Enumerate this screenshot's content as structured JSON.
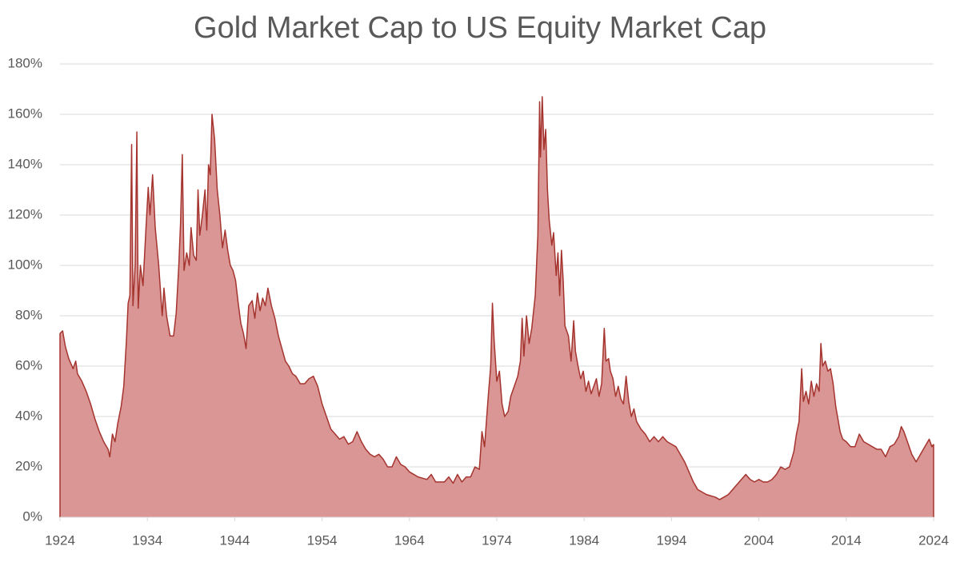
{
  "chart_data": {
    "type": "area",
    "title": "Gold Market Cap to US Equity Market Cap",
    "x": [
      1924.0,
      1924.3,
      1924.6,
      1925,
      1925.5,
      1925.8,
      1926,
      1926.5,
      1927,
      1927.5,
      1928,
      1928.5,
      1929,
      1929.5,
      1929.7,
      1930,
      1930.3,
      1930.6,
      1931,
      1931.3,
      1931.6,
      1931.8,
      1932.0,
      1932.2,
      1932.35,
      1932.6,
      1932.8,
      1932.95,
      1933.2,
      1933.5,
      1933.8,
      1934.1,
      1934.3,
      1934.6,
      1934.9,
      1935.3,
      1935.7,
      1935.9,
      1936.2,
      1936.6,
      1937,
      1937.3,
      1937.6,
      1937.8,
      1938.0,
      1938.2,
      1938.5,
      1938.8,
      1939.0,
      1939.3,
      1939.6,
      1939.8,
      1940.0,
      1940.3,
      1940.6,
      1940.8,
      1941.0,
      1941.2,
      1941.4,
      1941.7,
      1942,
      1942.3,
      1942.6,
      1942.9,
      1943.2,
      1943.5,
      1943.8,
      1944.1,
      1944.4,
      1944.7,
      1945,
      1945.3,
      1945.6,
      1946,
      1946.3,
      1946.6,
      1946.9,
      1947.2,
      1947.5,
      1947.8,
      1948.2,
      1948.6,
      1949,
      1949.4,
      1949.8,
      1950.2,
      1950.6,
      1951,
      1951.5,
      1952,
      1952.5,
      1953,
      1953.5,
      1954,
      1954.5,
      1955,
      1955.5,
      1956,
      1956.5,
      1957,
      1957.5,
      1958,
      1958.5,
      1959,
      1959.5,
      1960,
      1960.5,
      1961,
      1961.5,
      1962,
      1962.5,
      1963,
      1963.5,
      1964,
      1964.5,
      1965,
      1965.5,
      1966,
      1966.5,
      1967,
      1968,
      1968.5,
      1969,
      1969.5,
      1970,
      1970.5,
      1971,
      1971.5,
      1972,
      1972.3,
      1972.6,
      1973,
      1973.3,
      1973.5,
      1973.7,
      1974,
      1974.3,
      1974.6,
      1974.9,
      1975.3,
      1975.6,
      1976,
      1976.4,
      1976.7,
      1976.9,
      1977.1,
      1977.4,
      1977.7,
      1978,
      1978.4,
      1978.7,
      1978.9,
      1979.0,
      1979.2,
      1979.4,
      1979.6,
      1979.8,
      1980,
      1980.3,
      1980.5,
      1980.8,
      1981,
      1981.2,
      1981.4,
      1981.6,
      1981.8,
      1982.2,
      1982.5,
      1982.8,
      1983,
      1983.3,
      1983.6,
      1983.9,
      1984.2,
      1984.5,
      1984.8,
      1985.1,
      1985.4,
      1985.7,
      1986,
      1986.3,
      1986.5,
      1986.8,
      1987,
      1987.3,
      1987.6,
      1987.9,
      1988.2,
      1988.5,
      1988.8,
      1989.1,
      1989.4,
      1989.7,
      1990,
      1990.5,
      1991,
      1991.5,
      1992,
      1992.5,
      1993,
      1993.5,
      1994,
      1994.5,
      1995,
      1995.5,
      1996,
      1996.5,
      1997,
      1997.5,
      1998,
      1998.5,
      1999,
      1999.5,
      2000,
      2000.5,
      2001,
      2001.5,
      2002,
      2002.5,
      2003,
      2003.5,
      2004,
      2004.5,
      2005,
      2005.5,
      2006,
      2006.5,
      2007,
      2007.5,
      2008,
      2008.3,
      2008.6,
      2008.9,
      2009.1,
      2009.4,
      2009.7,
      2010,
      2010.3,
      2010.6,
      2010.9,
      2011.1,
      2011.3,
      2011.6,
      2011.9,
      2012.2,
      2012.5,
      2012.8,
      2013,
      2013.3,
      2013.6,
      2014,
      2014.5,
      2015,
      2015.5,
      2016,
      2016.5,
      2017,
      2017.5,
      2018,
      2018.5,
      2019,
      2019.5,
      2020,
      2020.3,
      2020.6,
      2021,
      2021.5,
      2022,
      2022.5,
      2023,
      2023.5,
      2023.8,
      2024.0
    ],
    "values": [
      73,
      74,
      68,
      63,
      59,
      62,
      57,
      54,
      50,
      45,
      39,
      34,
      30,
      27,
      24,
      33,
      30,
      37,
      44,
      52,
      70,
      85,
      88,
      148,
      84,
      100,
      153,
      83,
      100,
      92,
      112,
      131,
      120,
      136,
      115,
      100,
      80,
      91,
      80,
      72,
      72,
      81,
      100,
      117,
      144,
      98,
      105,
      100,
      115,
      104,
      102,
      130,
      112,
      120,
      130,
      114,
      140,
      136,
      160,
      150,
      130,
      120,
      107,
      114,
      106,
      100,
      98,
      94,
      85,
      77,
      73,
      67,
      84,
      86,
      79,
      89,
      82,
      87,
      84,
      91,
      84,
      79,
      72,
      67,
      62,
      60,
      57,
      56,
      53,
      53,
      55,
      56,
      52,
      45,
      40,
      35,
      33,
      31,
      32,
      29,
      30,
      34,
      30,
      27,
      25,
      24,
      25,
      23,
      20,
      20,
      24,
      21,
      20,
      18,
      17,
      16,
      15.5,
      15,
      17,
      14,
      14,
      16,
      13.5,
      17,
      14,
      16,
      16,
      20,
      19,
      34,
      28,
      47,
      60,
      85,
      70,
      54,
      58,
      45,
      40,
      42,
      48,
      52,
      56,
      62,
      79,
      64,
      80,
      69,
      75,
      88,
      112,
      165,
      143,
      167,
      146,
      154,
      130,
      118,
      108,
      113,
      96,
      105,
      88,
      106,
      94,
      76,
      72,
      62,
      78,
      66,
      60,
      55,
      58,
      50,
      54,
      49,
      52,
      55,
      48,
      53,
      75,
      62,
      63,
      58,
      55,
      48,
      52,
      47,
      45,
      56,
      46,
      40,
      43,
      38,
      35,
      33,
      30,
      32,
      30,
      32,
      30,
      29,
      28,
      25,
      22,
      18,
      14,
      11,
      10,
      9,
      8.5,
      8,
      7,
      8,
      9,
      11,
      13,
      15,
      17,
      15,
      14,
      15,
      14,
      14,
      15,
      17,
      20,
      19,
      20,
      26,
      33,
      38,
      59,
      46,
      50,
      45,
      54,
      48,
      53,
      50,
      69,
      60,
      62,
      58,
      59,
      53,
      44,
      40,
      34,
      31,
      30,
      28,
      28,
      33,
      30,
      29,
      28,
      27,
      27,
      24,
      28,
      29,
      32,
      36,
      34,
      30,
      25,
      22,
      25,
      28,
      31,
      28,
      29
    ],
    "color": "#d99694",
    "line_color": "#a5342f",
    "xlim": [
      1924,
      2024
    ],
    "xticks": [
      1924,
      1934,
      1944,
      1954,
      1964,
      1974,
      1984,
      1994,
      2004,
      2014,
      2024
    ],
    "ylim": [
      0,
      180
    ],
    "yticks": [
      {
        "value": 0,
        "label": "0%"
      },
      {
        "value": 20,
        "label": "20%"
      },
      {
        "value": 40,
        "label": "40%"
      },
      {
        "value": 60,
        "label": "60%"
      },
      {
        "value": 80,
        "label": "80%"
      },
      {
        "value": 100,
        "label": "100%"
      },
      {
        "value": 120,
        "label": "120%"
      },
      {
        "value": 140,
        "label": "140%"
      },
      {
        "value": 160,
        "label": "160%"
      },
      {
        "value": 180,
        "label": "180%"
      }
    ],
    "grid": true
  }
}
